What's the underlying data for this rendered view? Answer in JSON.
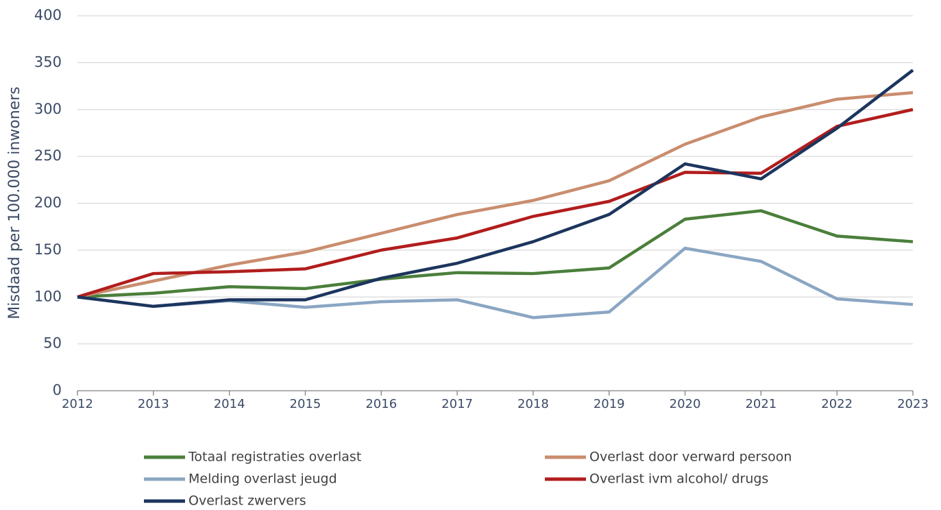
{
  "chart_data": {
    "type": "line",
    "y_label": "Misdaad per 100.000 inwoners",
    "x": [
      2012,
      2013,
      2014,
      2015,
      2016,
      2017,
      2018,
      2019,
      2020,
      2021,
      2022,
      2023
    ],
    "xlim": [
      2012,
      2023
    ],
    "xticks": [
      2012,
      2013,
      2014,
      2015,
      2016,
      2017,
      2018,
      2019,
      2020,
      2021,
      2022,
      2023
    ],
    "ylim": [
      0,
      400
    ],
    "yticks": [
      0,
      50,
      100,
      150,
      200,
      250,
      300,
      350,
      400
    ],
    "grid": true,
    "legend": "bottom",
    "series": [
      {
        "name": "Totaal registraties overlast",
        "color": "#4b7f3b",
        "values": [
          100,
          104,
          111,
          109,
          119,
          126,
          125,
          131,
          183,
          192,
          165,
          159
        ]
      },
      {
        "name": "Overlast door verward persoon",
        "color": "#c98d6e",
        "values": [
          100,
          117,
          134,
          148,
          168,
          188,
          203,
          224,
          263,
          292,
          311,
          318
        ]
      },
      {
        "name": "Melding overlast jeugd",
        "color": "#8aa6c3",
        "values": [
          100,
          90,
          96,
          89,
          95,
          97,
          78,
          84,
          152,
          138,
          98,
          92
        ]
      },
      {
        "name": "Overlast ivm alcohol/ drugs",
        "color": "#b21d1d",
        "values": [
          100,
          125,
          127,
          130,
          150,
          163,
          186,
          202,
          233,
          232,
          282,
          300
        ]
      },
      {
        "name": "Overlast zwervers",
        "color": "#1c355e",
        "values": [
          100,
          90,
          97,
          97,
          120,
          136,
          159,
          188,
          242,
          226,
          280,
          342
        ]
      }
    ]
  }
}
